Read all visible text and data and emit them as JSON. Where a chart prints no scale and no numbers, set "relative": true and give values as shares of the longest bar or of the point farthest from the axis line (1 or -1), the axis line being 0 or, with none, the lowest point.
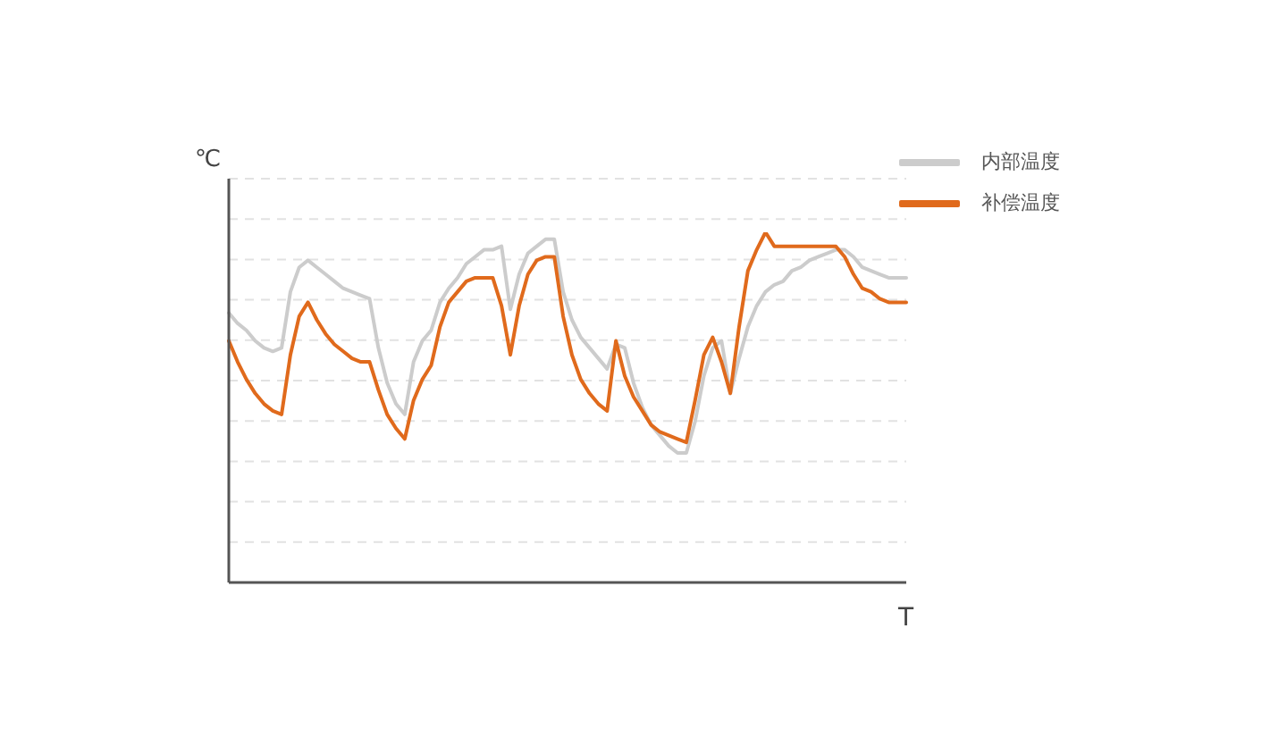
{
  "chart_data": {
    "type": "line",
    "relative": true,
    "xlabel": "T",
    "ylabel": "℃",
    "grid": "y",
    "legend": "top right",
    "marker": "none",
    "line_style": "solid",
    "categories": [
      null,
      null,
      null,
      null,
      null,
      null,
      null,
      null,
      null,
      null,
      null,
      null,
      null,
      null,
      null,
      null,
      null,
      null,
      null,
      null,
      null,
      null,
      null,
      null,
      null,
      null,
      null,
      null,
      null,
      null,
      null,
      null,
      null,
      null,
      null,
      null,
      null,
      null,
      null,
      null,
      null,
      null,
      null,
      null,
      null,
      null,
      null,
      null,
      null,
      null,
      null,
      null,
      null,
      null,
      null,
      null,
      null,
      null,
      null,
      null,
      null,
      null,
      null,
      null,
      null,
      null,
      null,
      null,
      null,
      null,
      null,
      null,
      null,
      null,
      null,
      null,
      null,
      null
    ],
    "series": [
      {
        "name": "内部温度",
        "color": "#cccccc",
        "values": [
          0.77,
          0.74,
          0.72,
          0.69,
          0.67,
          0.66,
          0.67,
          0.83,
          0.9,
          0.92,
          0.9,
          0.88,
          0.86,
          0.84,
          0.83,
          0.82,
          0.81,
          0.67,
          0.57,
          0.51,
          0.48,
          0.63,
          0.69,
          0.72,
          0.8,
          0.84,
          0.87,
          0.91,
          0.93,
          0.95,
          0.95,
          0.96,
          0.78,
          0.88,
          0.94,
          0.96,
          0.98,
          0.98,
          0.83,
          0.75,
          0.7,
          0.67,
          0.64,
          0.61,
          0.68,
          0.67,
          0.57,
          0.5,
          0.45,
          0.42,
          0.39,
          0.37,
          0.37,
          0.46,
          0.59,
          0.67,
          0.69,
          0.54,
          0.64,
          0.73,
          0.79,
          0.83,
          0.85,
          0.86,
          0.89,
          0.9,
          0.92,
          0.93,
          0.94,
          0.95,
          0.95,
          0.93,
          0.9,
          0.89,
          0.88,
          0.87,
          0.87,
          0.87
        ]
      },
      {
        "name": "补偿温度",
        "color": "#e06a1c",
        "values": [
          0.69,
          0.63,
          0.58,
          0.54,
          0.51,
          0.49,
          0.48,
          0.65,
          0.76,
          0.8,
          0.75,
          0.71,
          0.68,
          0.66,
          0.64,
          0.63,
          0.63,
          0.55,
          0.48,
          0.44,
          0.41,
          0.52,
          0.58,
          0.62,
          0.73,
          0.8,
          0.83,
          0.86,
          0.87,
          0.87,
          0.87,
          0.79,
          0.65,
          0.79,
          0.88,
          0.92,
          0.93,
          0.93,
          0.76,
          0.65,
          0.58,
          0.54,
          0.51,
          0.49,
          0.69,
          0.59,
          0.53,
          0.49,
          0.45,
          0.43,
          0.42,
          0.41,
          0.4,
          0.52,
          0.65,
          0.7,
          0.63,
          0.54,
          0.73,
          0.89,
          0.95,
          1,
          0.96,
          0.96,
          0.96,
          0.96,
          0.96,
          0.96,
          0.96,
          0.96,
          0.93,
          0.88,
          0.84,
          0.83,
          0.81,
          0.8,
          0.8,
          0.8
        ]
      }
    ]
  }
}
